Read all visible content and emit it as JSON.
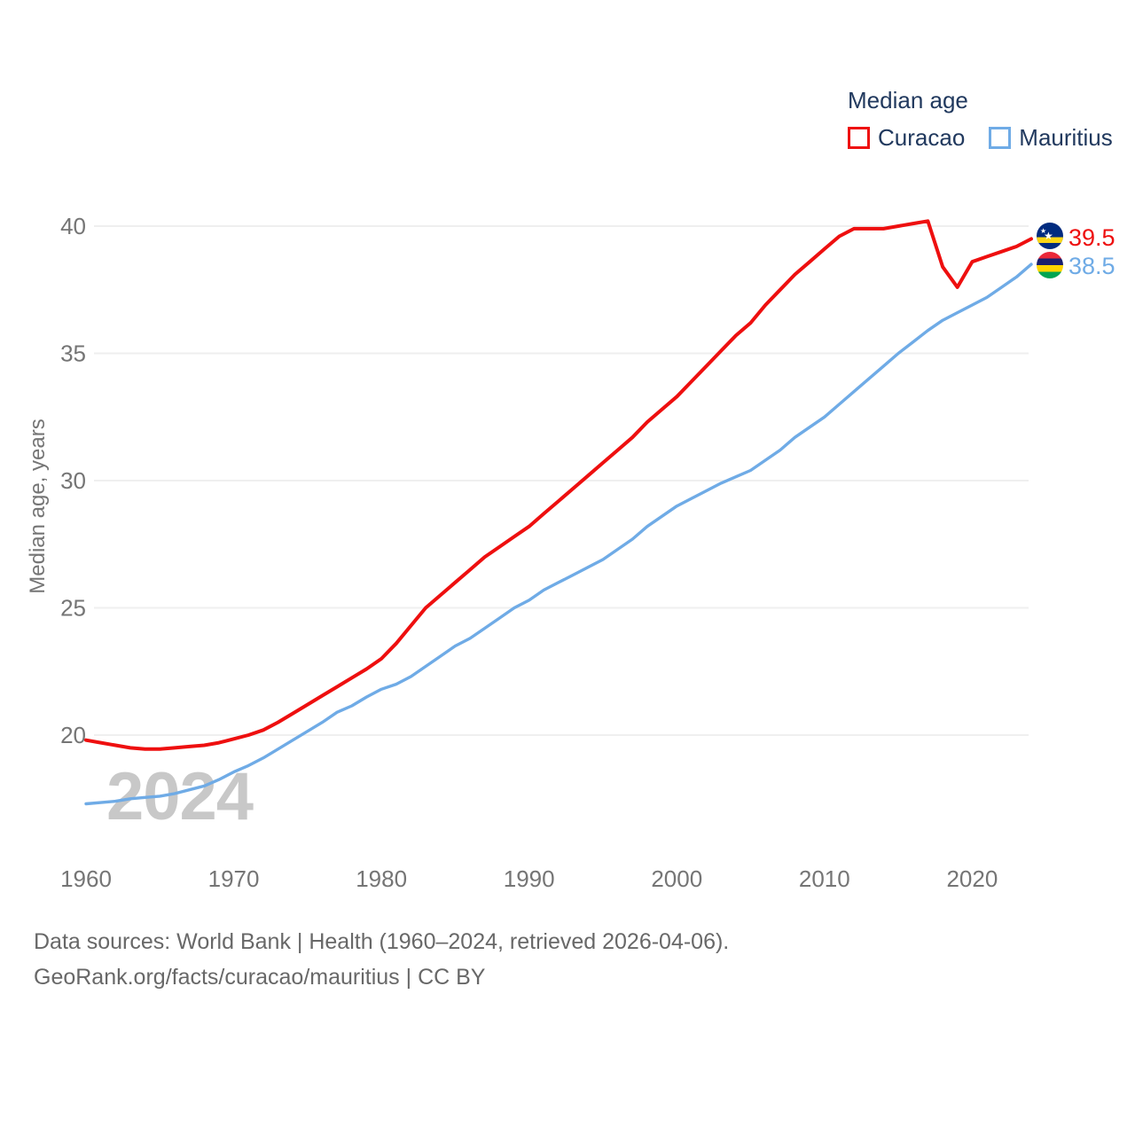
{
  "legend": {
    "title": "Median age",
    "series": [
      {
        "label": "Curacao",
        "color": "#ee0f0f"
      },
      {
        "label": "Mauritius",
        "color": "#6fabe6"
      }
    ]
  },
  "y_axis": {
    "title": "Median age, years",
    "ticks": [
      20,
      25,
      30,
      35,
      40
    ]
  },
  "x_axis": {
    "ticks": [
      1960,
      1970,
      1980,
      1990,
      2000,
      2010,
      2020
    ]
  },
  "end_labels": [
    {
      "series": "Curacao",
      "value": "39.5"
    },
    {
      "series": "Mauritius",
      "value": "38.5"
    }
  ],
  "watermark": {
    "text": "2024"
  },
  "footer": {
    "line1": "Data sources: World Bank | Health (1960–2024, retrieved 2026-04-06).",
    "line2": "GeoRank.org/facts/curacao/mauritius | CC BY"
  },
  "chart_data": {
    "type": "line",
    "title": "Median age",
    "xlabel": "",
    "ylabel": "Median age, years",
    "xlim": [
      1960,
      2024
    ],
    "ylim": [
      16.5,
      41.5
    ],
    "grid": "horizontal",
    "legend_position": "top-right",
    "yticks": [
      20,
      25,
      30,
      35,
      40
    ],
    "xticks": [
      1960,
      1970,
      1980,
      1990,
      2000,
      2010,
      2020
    ],
    "x": [
      1960,
      1961,
      1962,
      1963,
      1964,
      1965,
      1966,
      1967,
      1968,
      1969,
      1970,
      1971,
      1972,
      1973,
      1974,
      1975,
      1976,
      1977,
      1978,
      1979,
      1980,
      1981,
      1982,
      1983,
      1984,
      1985,
      1986,
      1987,
      1988,
      1989,
      1990,
      1991,
      1992,
      1993,
      1994,
      1995,
      1996,
      1997,
      1998,
      1999,
      2000,
      2001,
      2002,
      2003,
      2004,
      2005,
      2006,
      2007,
      2008,
      2009,
      2010,
      2011,
      2012,
      2013,
      2014,
      2015,
      2016,
      2017,
      2018,
      2019,
      2020,
      2021,
      2022,
      2023,
      2024
    ],
    "series": [
      {
        "name": "Curacao",
        "color": "#ee0f0f",
        "end_value": 39.5,
        "values": [
          19.8,
          19.7,
          19.6,
          19.5,
          19.45,
          19.45,
          19.5,
          19.55,
          19.6,
          19.7,
          19.85,
          20.0,
          20.2,
          20.5,
          20.85,
          21.2,
          21.55,
          21.9,
          22.25,
          22.6,
          23.0,
          23.6,
          24.3,
          25.0,
          25.5,
          26.0,
          26.5,
          27.0,
          27.4,
          27.8,
          28.2,
          28.7,
          29.2,
          29.7,
          30.2,
          30.7,
          31.2,
          31.7,
          32.3,
          32.8,
          33.3,
          33.9,
          34.5,
          35.1,
          35.7,
          36.2,
          36.9,
          37.5,
          38.1,
          38.6,
          39.1,
          39.6,
          39.9,
          39.9,
          39.9,
          40.0,
          40.1,
          40.2,
          38.4,
          37.6,
          38.6,
          38.8,
          39.0,
          39.2,
          39.5
        ]
      },
      {
        "name": "Mauritius",
        "color": "#6fabe6",
        "end_value": 38.5,
        "values": [
          17.3,
          17.35,
          17.4,
          17.5,
          17.55,
          17.6,
          17.7,
          17.85,
          18.0,
          18.25,
          18.55,
          18.8,
          19.1,
          19.45,
          19.8,
          20.15,
          20.5,
          20.9,
          21.15,
          21.5,
          21.8,
          22.0,
          22.3,
          22.7,
          23.1,
          23.5,
          23.8,
          24.2,
          24.6,
          25.0,
          25.3,
          25.7,
          26.0,
          26.3,
          26.6,
          26.9,
          27.3,
          27.7,
          28.2,
          28.6,
          29.0,
          29.3,
          29.6,
          29.9,
          30.15,
          30.4,
          30.8,
          31.2,
          31.7,
          32.1,
          32.5,
          33.0,
          33.5,
          34.0,
          34.5,
          35.0,
          35.45,
          35.9,
          36.3,
          36.6,
          36.9,
          37.2,
          37.6,
          38.0,
          38.5
        ]
      }
    ]
  }
}
